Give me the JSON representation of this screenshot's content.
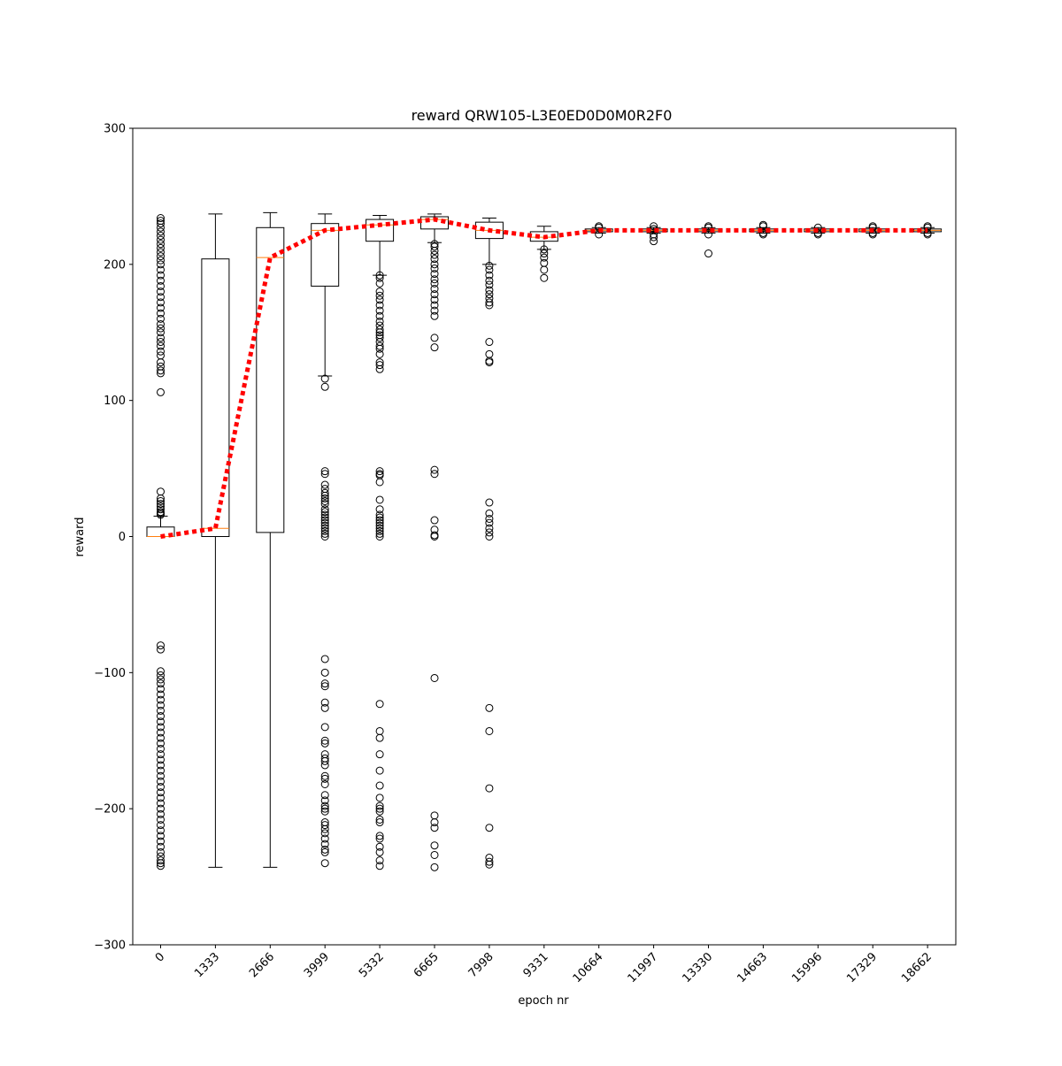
{
  "chart_data": {
    "type": "box",
    "title": "reward QRW105-L3E0ED0D0M0R2F0",
    "xlabel": "epoch nr",
    "ylabel": "reward",
    "ylim": [
      -300,
      300
    ],
    "yticks": [
      -300,
      -200,
      -100,
      0,
      100,
      200,
      300
    ],
    "ytick_labels": [
      "−300",
      "−200",
      "−100",
      "0",
      "100",
      "200",
      "300"
    ],
    "categories": [
      "0",
      "1333",
      "2666",
      "3999",
      "5332",
      "6665",
      "7998",
      "9331",
      "10664",
      "11997",
      "13330",
      "14663",
      "15996",
      "17329",
      "18662"
    ],
    "xtick_rotation_deg": 45,
    "grid": false,
    "boxes": [
      {
        "q1": 0,
        "median": 0,
        "q3": 7,
        "whisker_low": 0,
        "whisker_high": 15,
        "fliers": [
          16,
          17,
          18,
          20,
          22,
          24,
          26,
          28,
          33,
          106,
          120,
          122,
          125,
          128,
          133,
          136,
          140,
          143,
          146,
          150,
          153,
          156,
          160,
          164,
          168,
          172,
          176,
          180,
          184,
          188,
          192,
          196,
          200,
          203,
          206,
          209,
          212,
          215,
          218,
          221,
          224,
          227,
          230,
          232,
          234,
          -80,
          -83,
          -99,
          -102,
          -105,
          -108,
          -112,
          -116,
          -120,
          -124,
          -128,
          -132,
          -136,
          -140,
          -144,
          -148,
          -152,
          -156,
          -160,
          -164,
          -168,
          -172,
          -176,
          -180,
          -184,
          -188,
          -192,
          -196,
          -200,
          -204,
          -208,
          -212,
          -216,
          -220,
          -224,
          -228,
          -232,
          -235,
          -238,
          -240,
          -242
        ]
      },
      {
        "q1": 0,
        "median": 6,
        "q3": 204,
        "whisker_low": -243,
        "whisker_high": 237,
        "fliers": []
      },
      {
        "q1": 3,
        "median": 205,
        "q3": 227,
        "whisker_low": -243,
        "whisker_high": 238,
        "fliers": []
      },
      {
        "q1": 184,
        "median": 225,
        "q3": 230,
        "whisker_low": 118,
        "whisker_high": 237,
        "fliers": [
          116,
          110,
          48,
          46,
          38,
          35,
          32,
          30,
          28,
          26,
          24,
          20,
          18,
          16,
          14,
          12,
          10,
          8,
          6,
          4,
          2,
          0,
          -90,
          -100,
          -108,
          -110,
          -122,
          -126,
          -140,
          -150,
          -152,
          -160,
          -163,
          -165,
          -168,
          -176,
          -178,
          -182,
          -190,
          -194,
          -198,
          -200,
          -202,
          -210,
          -212,
          -215,
          -218,
          -222,
          -226,
          -230,
          -232,
          -240
        ]
      },
      {
        "q1": 217,
        "median": 229,
        "q3": 233,
        "whisker_low": 192,
        "whisker_high": 236,
        "fliers": [
          192,
          190,
          186,
          180,
          177,
          174,
          170,
          166,
          162,
          158,
          155,
          152,
          150,
          148,
          146,
          143,
          140,
          138,
          134,
          128,
          126,
          123,
          48,
          46,
          45,
          40,
          27,
          20,
          16,
          14,
          12,
          10,
          8,
          6,
          4,
          2,
          0,
          -123,
          -143,
          -148,
          -160,
          -172,
          -183,
          -192,
          -198,
          -200,
          -202,
          -208,
          -210,
          -220,
          -222,
          -228,
          -232,
          -238,
          -242
        ]
      },
      {
        "q1": 226,
        "median": 233,
        "q3": 235,
        "whisker_low": 216,
        "whisker_high": 237,
        "fliers": [
          215,
          213,
          210,
          207,
          204,
          200,
          197,
          193,
          189,
          186,
          182,
          178,
          174,
          170,
          166,
          162,
          146,
          139,
          49,
          46,
          12,
          5,
          1,
          0,
          -104,
          -205,
          -210,
          -214,
          -227,
          -234,
          -243
        ]
      },
      {
        "q1": 219,
        "median": 225,
        "q3": 231,
        "whisker_low": 200,
        "whisker_high": 234,
        "fliers": [
          199,
          196,
          192,
          188,
          185,
          181,
          178,
          175,
          172,
          170,
          143,
          134,
          129,
          128,
          25,
          17,
          13,
          10,
          6,
          3,
          0,
          -126,
          -143,
          -185,
          -214,
          -236,
          -239,
          -241
        ]
      },
      {
        "q1": 217,
        "median": 220,
        "q3": 224,
        "whisker_low": 211,
        "whisker_high": 228,
        "fliers": [
          211,
          208,
          205,
          201,
          196,
          190
        ]
      },
      {
        "q1": 224,
        "median": 225,
        "q3": 226,
        "whisker_low": 223,
        "whisker_high": 227,
        "fliers": [
          228,
          227,
          222
        ]
      },
      {
        "q1": 224,
        "median": 225,
        "q3": 226,
        "whisker_low": 223,
        "whisker_high": 227,
        "fliers": [
          228,
          226,
          222,
          220,
          217
        ]
      },
      {
        "q1": 224,
        "median": 225,
        "q3": 226,
        "whisker_low": 223,
        "whisker_high": 227,
        "fliers": [
          228,
          227,
          222,
          208
        ]
      },
      {
        "q1": 224,
        "median": 225,
        "q3": 226,
        "whisker_low": 223,
        "whisker_high": 227,
        "fliers": [
          229,
          228,
          223,
          222
        ]
      },
      {
        "q1": 224,
        "median": 225,
        "q3": 226,
        "whisker_low": 223,
        "whisker_high": 227,
        "fliers": [
          227,
          223,
          222
        ]
      },
      {
        "q1": 224,
        "median": 225,
        "q3": 226,
        "whisker_low": 223,
        "whisker_high": 227,
        "fliers": [
          228,
          227,
          223,
          222
        ]
      },
      {
        "q1": 224,
        "median": 225,
        "q3": 226,
        "whisker_low": 223,
        "whisker_high": 227,
        "fliers": [
          228,
          227,
          223,
          222
        ]
      }
    ],
    "mean_line": {
      "values": [
        0,
        6,
        205,
        225,
        229,
        233,
        225,
        220,
        225,
        225,
        225,
        225,
        225,
        225,
        225
      ],
      "color": "#ff0000",
      "style": "dotted"
    },
    "colors": {
      "box_edge": "#000000",
      "median": "#ff7f0e",
      "flier_edge": "#000000",
      "mean_line": "#ff0000"
    }
  }
}
